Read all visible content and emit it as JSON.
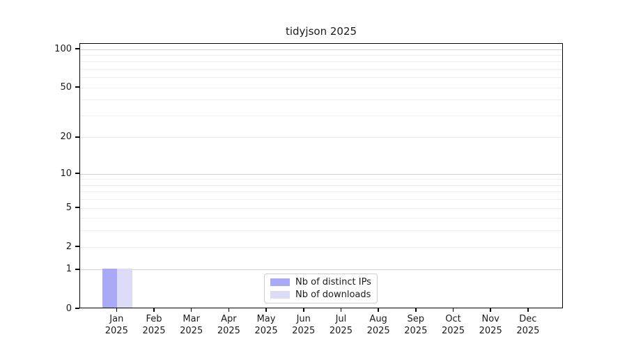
{
  "chart_data": {
    "type": "bar",
    "title": "tidyjson 2025",
    "xlabel": "",
    "ylabel": "",
    "yscale": "log1p",
    "ylim": [
      0,
      110
    ],
    "yticks": [
      0,
      1,
      2,
      5,
      10,
      20,
      50,
      100
    ],
    "grid_major": [
      1,
      10,
      100
    ],
    "grid_minor": [
      2,
      3,
      4,
      5,
      6,
      7,
      8,
      9,
      20,
      30,
      40,
      50,
      60,
      70,
      80,
      90
    ],
    "categories": [
      "Jan",
      "Feb",
      "Mar",
      "Apr",
      "May",
      "Jun",
      "Jul",
      "Aug",
      "Sep",
      "Oct",
      "Nov",
      "Dec"
    ],
    "category_sublabel": "2025",
    "series": [
      {
        "name": "Nb of distinct IPs",
        "color": "#a9a9f7",
        "values": [
          1,
          0,
          0,
          0,
          0,
          0,
          0,
          0,
          0,
          0,
          0,
          0
        ]
      },
      {
        "name": "Nb of downloads",
        "color": "#dcdcf9",
        "values": [
          1,
          0,
          0,
          0,
          0,
          0,
          0,
          0,
          0,
          0,
          0,
          0
        ]
      }
    ],
    "legend_position": "bottom-center",
    "grid": "on",
    "colors": {
      "spine": "#000000",
      "grid_major": "#d2d2d2",
      "grid_minor": "#ededed",
      "text": "#1a1a1a",
      "legend_border": "#cccccc"
    }
  }
}
